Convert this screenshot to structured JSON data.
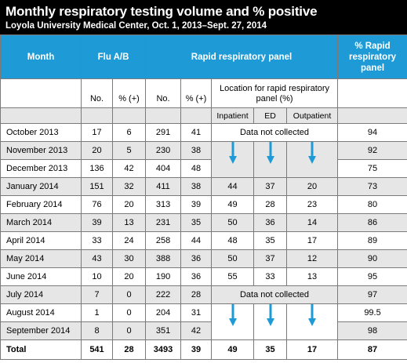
{
  "title": "Monthly respiratory testing volume and % positive",
  "subtitle": "Loyola University Medical Center, Oct. 1, 2013–Sept. 27, 2014",
  "headers": {
    "month": "Month",
    "flu": "Flu A/B",
    "rrp": "Rapid respiratory panel",
    "pct_rrp": "% Rapid respiratory panel",
    "no": "No.",
    "pct_pos": "% (+)",
    "location": "Location for rapid respiratory panel (%)",
    "inpatient": "Inpatient",
    "ed": "ED",
    "outpatient": "Outpatient"
  },
  "not_collected": "Data not collected",
  "accent_color": "#1e9bd7",
  "rows": [
    {
      "month": "October 2013",
      "flu_no": "17",
      "flu_pct": "6",
      "rrp_no": "291",
      "rrp_pct": "41",
      "inpatient": "",
      "ed": "",
      "outpatient": "",
      "pct_rrp": "94"
    },
    {
      "month": "November 2013",
      "flu_no": "20",
      "flu_pct": "5",
      "rrp_no": "230",
      "rrp_pct": "38",
      "inpatient": "",
      "ed": "",
      "outpatient": "",
      "pct_rrp": "92"
    },
    {
      "month": "December 2013",
      "flu_no": "136",
      "flu_pct": "42",
      "rrp_no": "404",
      "rrp_pct": "48",
      "inpatient": "",
      "ed": "",
      "outpatient": "",
      "pct_rrp": "75"
    },
    {
      "month": "January 2014",
      "flu_no": "151",
      "flu_pct": "32",
      "rrp_no": "411",
      "rrp_pct": "38",
      "inpatient": "44",
      "ed": "37",
      "outpatient": "20",
      "pct_rrp": "73"
    },
    {
      "month": "February 2014",
      "flu_no": "76",
      "flu_pct": "20",
      "rrp_no": "313",
      "rrp_pct": "39",
      "inpatient": "49",
      "ed": "28",
      "outpatient": "23",
      "pct_rrp": "80"
    },
    {
      "month": "March 2014",
      "flu_no": "39",
      "flu_pct": "13",
      "rrp_no": "231",
      "rrp_pct": "35",
      "inpatient": "50",
      "ed": "36",
      "outpatient": "14",
      "pct_rrp": "86"
    },
    {
      "month": "April 2014",
      "flu_no": "33",
      "flu_pct": "24",
      "rrp_no": "258",
      "rrp_pct": "44",
      "inpatient": "48",
      "ed": "35",
      "outpatient": "17",
      "pct_rrp": "89"
    },
    {
      "month": "May 2014",
      "flu_no": "43",
      "flu_pct": "30",
      "rrp_no": "388",
      "rrp_pct": "36",
      "inpatient": "50",
      "ed": "37",
      "outpatient": "12",
      "pct_rrp": "90"
    },
    {
      "month": "June 2014",
      "flu_no": "10",
      "flu_pct": "20",
      "rrp_no": "190",
      "rrp_pct": "36",
      "inpatient": "55",
      "ed": "33",
      "outpatient": "13",
      "pct_rrp": "95"
    },
    {
      "month": "July 2014",
      "flu_no": "7",
      "flu_pct": "0",
      "rrp_no": "222",
      "rrp_pct": "28",
      "inpatient": "",
      "ed": "",
      "outpatient": "",
      "pct_rrp": "97"
    },
    {
      "month": "August 2014",
      "flu_no": "1",
      "flu_pct": "0",
      "rrp_no": "204",
      "rrp_pct": "31",
      "inpatient": "",
      "ed": "",
      "outpatient": "",
      "pct_rrp": "99.5"
    },
    {
      "month": "September 2014",
      "flu_no": "8",
      "flu_pct": "0",
      "rrp_no": "351",
      "rrp_pct": "42",
      "inpatient": "",
      "ed": "",
      "outpatient": "",
      "pct_rrp": "98"
    }
  ],
  "total": {
    "month": "Total",
    "flu_no": "541",
    "flu_pct": "28",
    "rrp_no": "3493",
    "rrp_pct": "39",
    "inpatient": "49",
    "ed": "35",
    "outpatient": "17",
    "pct_rrp": "87"
  }
}
